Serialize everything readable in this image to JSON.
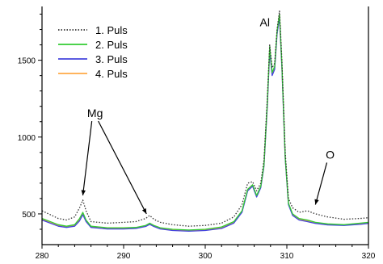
{
  "chart_data": {
    "type": "line",
    "title": "",
    "xlabel": "",
    "ylabel": "",
    "xlim": [
      280,
      320
    ],
    "ylim": [
      300,
      1850
    ],
    "xticks": [
      280,
      290,
      300,
      310,
      320
    ],
    "yticks": [
      500,
      1000,
      1500
    ],
    "legend_placement": "top-left",
    "series": [
      {
        "name": "1. Puls",
        "color": "#333333",
        "dash": "dotted",
        "x": [
          280,
          282,
          283,
          284,
          284.6,
          285.0,
          285.4,
          286,
          288,
          290,
          291.5,
          292.7,
          293.2,
          293.7,
          294.5,
          296,
          298,
          300,
          302,
          303.5,
          304.5,
          305.2,
          305.8,
          306.3,
          306.8,
          307.2,
          307.6,
          307.9,
          308.2,
          308.5,
          308.8,
          309.1,
          309.4,
          309.8,
          310.2,
          310.7,
          311.5,
          312.5,
          313.5,
          315,
          317,
          319,
          320
        ],
        "y": [
          520,
          470,
          460,
          480,
          540,
          590,
          520,
          450,
          440,
          445,
          450,
          470,
          490,
          465,
          445,
          430,
          420,
          425,
          440,
          480,
          560,
          700,
          710,
          650,
          700,
          850,
          1250,
          1600,
          1450,
          1480,
          1700,
          1820,
          1500,
          900,
          600,
          540,
          510,
          520,
          500,
          480,
          465,
          470,
          475
        ]
      },
      {
        "name": "2. Puls",
        "color": "#33cc33",
        "dash": "solid",
        "x": [
          280,
          282,
          283,
          284,
          284.6,
          285.0,
          285.4,
          286,
          288,
          290,
          291.5,
          292.7,
          293.2,
          293.7,
          294.5,
          296,
          298,
          300,
          302,
          303.5,
          304.5,
          305.2,
          305.8,
          306.3,
          306.8,
          307.2,
          307.6,
          307.9,
          308.2,
          308.5,
          308.8,
          309.1,
          309.4,
          309.8,
          310.2,
          310.7,
          311.5,
          312.5,
          313.5,
          315,
          317,
          319,
          320
        ],
        "y": [
          470,
          430,
          420,
          430,
          470,
          510,
          460,
          420,
          410,
          410,
          412,
          425,
          440,
          425,
          410,
          400,
          395,
          400,
          415,
          450,
          520,
          660,
          690,
          620,
          680,
          820,
          1220,
          1590,
          1420,
          1460,
          1690,
          1800,
          1470,
          870,
          570,
          500,
          470,
          460,
          445,
          435,
          430,
          440,
          445
        ]
      },
      {
        "name": "3. Puls",
        "color": "#4444dd",
        "dash": "solid",
        "x": [
          280,
          282,
          283,
          284,
          284.6,
          285.0,
          285.4,
          286,
          288,
          290,
          291.5,
          292.7,
          293.2,
          293.7,
          294.5,
          296,
          298,
          300,
          302,
          303.5,
          304.5,
          305.2,
          305.8,
          306.3,
          306.8,
          307.2,
          307.6,
          307.9,
          308.2,
          308.5,
          308.8,
          309.1,
          309.4,
          309.8,
          310.2,
          310.7,
          311.5,
          312.5,
          313.5,
          315,
          317,
          319,
          320
        ],
        "y": [
          460,
          420,
          412,
          420,
          455,
          495,
          450,
          412,
          402,
          402,
          405,
          418,
          432,
          418,
          402,
          392,
          388,
          392,
          405,
          440,
          510,
          650,
          680,
          610,
          670,
          810,
          1200,
          1560,
          1400,
          1440,
          1670,
          1780,
          1450,
          860,
          560,
          490,
          460,
          450,
          438,
          428,
          425,
          432,
          438
        ]
      },
      {
        "name": "4. Puls",
        "color": "#ffaa44",
        "dash": "solid",
        "x": [
          280,
          282,
          283,
          284,
          284.6,
          285.0,
          285.4,
          286,
          288,
          290,
          291.5,
          292.7,
          293.2,
          293.7,
          294.5,
          296,
          298,
          300,
          302,
          303.5,
          304.5,
          305.2,
          305.8,
          306.3,
          306.8,
          307.2,
          307.6,
          307.9,
          308.2,
          308.5,
          308.8,
          309.1,
          309.4,
          309.8,
          310.2,
          310.7,
          311.5,
          312.5,
          313.5,
          315,
          317,
          319,
          320
        ],
        "y": [
          465,
          425,
          415,
          425,
          462,
          500,
          455,
          415,
          405,
          405,
          408,
          420,
          435,
          420,
          405,
          395,
          390,
          395,
          408,
          445,
          515,
          655,
          685,
          615,
          675,
          815,
          1210,
          1575,
          1410,
          1450,
          1685,
          1795,
          1460,
          865,
          565,
          495,
          465,
          455,
          440,
          430,
          428,
          435,
          440
        ]
      }
    ],
    "annotations": [
      {
        "text": "Mg",
        "x": 286.5,
        "y": 1130,
        "arrows_to": [
          [
            285.0,
            620
          ],
          [
            292.8,
            500
          ]
        ]
      },
      {
        "text": "Al",
        "x": 307.3,
        "y": 1720,
        "arrows_to": []
      },
      {
        "text": "O",
        "x": 315.3,
        "y": 860,
        "arrows_to": [
          [
            313.5,
            560
          ]
        ]
      }
    ]
  }
}
